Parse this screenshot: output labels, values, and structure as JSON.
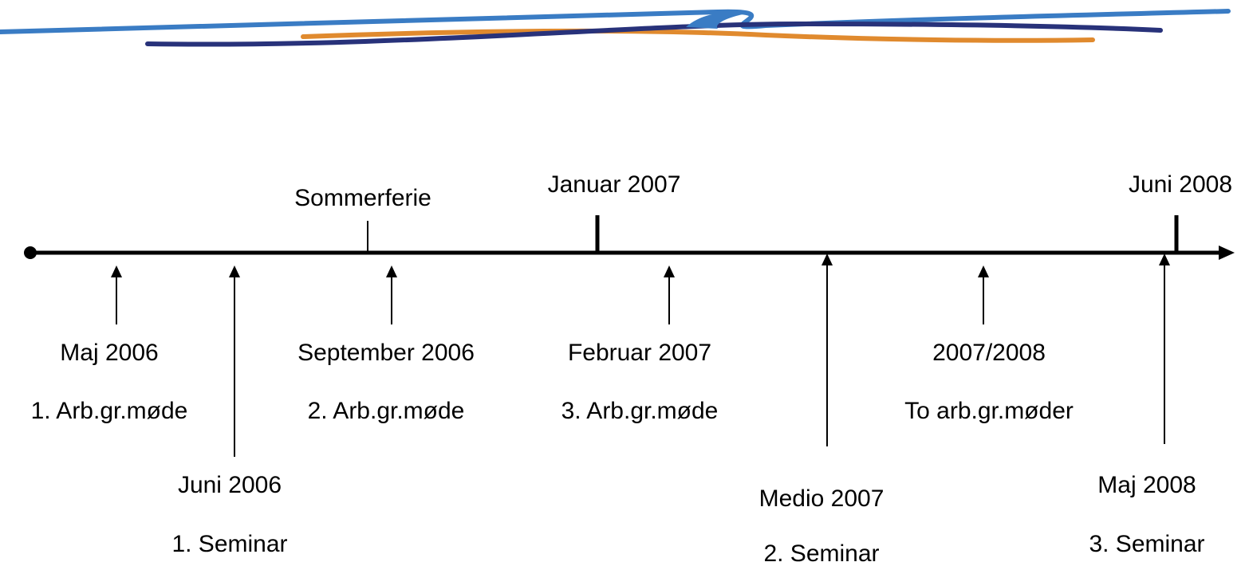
{
  "timeline": {
    "markers": [
      {
        "label": "Sommerferie"
      },
      {
        "label": "Januar 2007"
      },
      {
        "label": "Juni 2008"
      }
    ],
    "events": [
      {
        "date": "Maj 2006",
        "label": "1. Arb.gr.møde"
      },
      {
        "date": "Juni 2006",
        "label": "1. Seminar"
      },
      {
        "date": "September 2006",
        "label": "2. Arb.gr.møde"
      },
      {
        "date": "Februar 2007",
        "label": "3. Arb.gr.møde"
      },
      {
        "date": "Medio 2007",
        "label": "2. Seminar"
      },
      {
        "date": "2007/2008",
        "label": "To arb.gr.møder"
      },
      {
        "date": "Maj 2008",
        "label": "3. Seminar"
      }
    ]
  }
}
